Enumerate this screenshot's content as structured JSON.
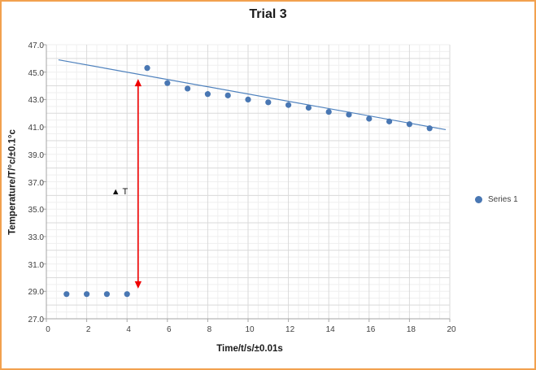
{
  "colors": {
    "frame_border": "#F2A14F",
    "background": "#FFFFFF",
    "grid_minor": "#EFEFEF",
    "grid_major": "#DADADA",
    "axis_line": "#A6A6A6",
    "marker": "#4977B3",
    "trendline": "#4E81BD",
    "arrow_red": "#F00000",
    "tick_text": "#404040",
    "title_text": "#1A1A1A"
  },
  "chart_data": {
    "type": "scatter",
    "title": "Trial 3",
    "xlabel": "Time/t/s/±0.01s",
    "ylabel": "Temperature/T/°c/±0.1°c",
    "xlim": [
      0,
      20
    ],
    "ylim": [
      27,
      47
    ],
    "x_ticks": [
      "0",
      "2",
      "4",
      "6",
      "8",
      "10",
      "12",
      "14",
      "16",
      "18",
      "20"
    ],
    "y_ticks": [
      "27.0",
      "29.0",
      "31.0",
      "33.0",
      "35.0",
      "37.0",
      "39.0",
      "41.0",
      "43.0",
      "45.0",
      "47.0"
    ],
    "minor_grid_step": 0.5,
    "major_grid_step": 2,
    "grid": true,
    "legend": {
      "position": "right",
      "entries": [
        {
          "label": "Series 1",
          "marker_color": "#4977B3"
        }
      ]
    },
    "series": [
      {
        "name": "Series 1",
        "marker_color": "#4977B3",
        "x": [
          1,
          2,
          3,
          4,
          5,
          6,
          7,
          8,
          9,
          10,
          11,
          12,
          13,
          14,
          15,
          16,
          17,
          18,
          19
        ],
        "y": [
          28.8,
          28.8,
          28.8,
          28.8,
          45.3,
          44.2,
          43.8,
          43.4,
          43.3,
          43.0,
          42.8,
          42.6,
          42.4,
          42.1,
          41.9,
          41.6,
          41.4,
          41.2,
          40.9
        ]
      }
    ],
    "trendline": {
      "color": "#4E81BD",
      "x1": 0.6,
      "y1": 45.9,
      "x2": 19.8,
      "y2": 40.8
    },
    "annotations": {
      "delta_arrow": {
        "type": "double_arrow_vertical",
        "x": 4.55,
        "y_top": 44.5,
        "y_bottom": 29.2,
        "color": "#F00000"
      },
      "delta_label": {
        "text": "▲ T",
        "x": 3.55,
        "y": 36.4
      }
    }
  }
}
